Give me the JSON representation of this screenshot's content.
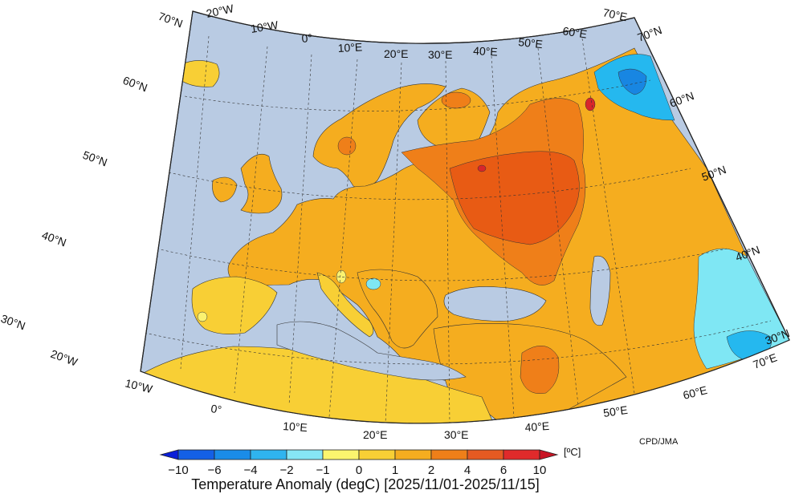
{
  "map": {
    "title": "Temperature Anomaly (degC) [2025/11/01-2025/11/15]",
    "credit": "CPD/JMA",
    "unit": "[ºC]",
    "colors": {
      "ocean": "#b9cbe3",
      "land_base": "#f5ad1f",
      "warm": "#ef7f19",
      "hot": "#e85b14",
      "very_hot": "#d8262b",
      "mild": "#f8cf35",
      "neutral": "#fbf271",
      "cool": "#7fe7f4",
      "cold": "#25b8ef",
      "colder": "#1886e2"
    },
    "longitude_labels_top": [
      "20°W",
      "10°W",
      "0°",
      "10°E",
      "20°E",
      "30°E",
      "40°E",
      "50°E",
      "60°E",
      "70°E"
    ],
    "longitude_labels_bottom": [
      "20°W",
      "10°W",
      "0°",
      "10°E",
      "20°E",
      "30°E",
      "40°E",
      "50°E",
      "60°E",
      "70°E"
    ],
    "latitude_labels_left": [
      "70°N",
      "60°N",
      "50°N",
      "40°N",
      "30°N"
    ],
    "latitude_labels_right": [
      "70°N",
      "60°N",
      "50°N",
      "40°N",
      "30°N"
    ]
  },
  "legend": {
    "ticks": [
      "−10",
      "−6",
      "−4",
      "−2",
      "−1",
      "0",
      "1",
      "2",
      "4",
      "6",
      "10"
    ],
    "colors": [
      "#0a1fd8",
      "#1460e6",
      "#1a8ce8",
      "#2fb4ef",
      "#86e6f5",
      "#fbf56e",
      "#f8cf35",
      "#f5ad1f",
      "#ef7f19",
      "#e55a22",
      "#e02a2b",
      "#c81424"
    ]
  }
}
